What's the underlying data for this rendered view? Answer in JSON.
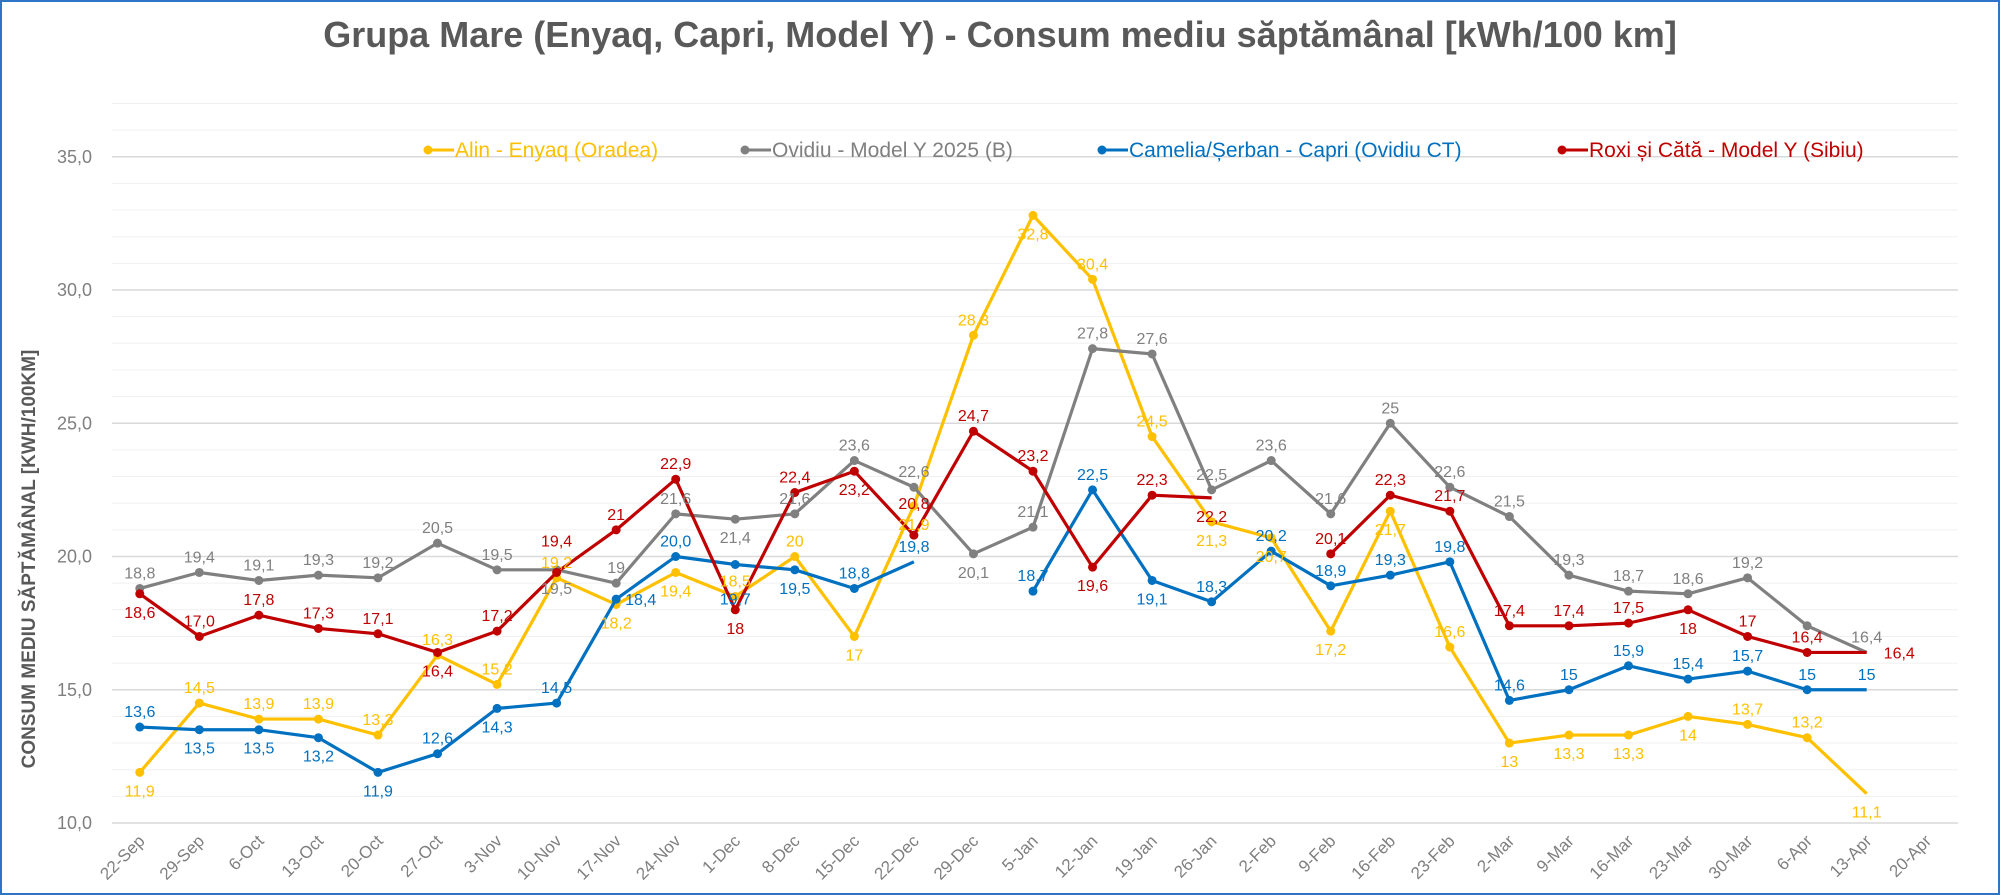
{
  "chart_data": {
    "type": "line",
    "title": "Grupa Mare (Enyaq, Capri, Model Y) - Consum mediu săptămânal [kWh/100 km]",
    "xlabel": "",
    "ylabel": "CONSUM MEDIU SĂPTĂMÂNAL [KWH/100KM]",
    "ylim": [
      10,
      37
    ],
    "yticks": [
      10,
      15,
      20,
      25,
      30,
      35
    ],
    "ytick_labels": [
      "10,0",
      "15,0",
      "20,0",
      "25,0",
      "30,0",
      "35,0"
    ],
    "grid": "horizontal major and minor (every 1 unit)",
    "legend_position": "top",
    "categories": [
      "22-Sep",
      "29-Sep",
      "6-Oct",
      "13-Oct",
      "20-Oct",
      "27-Oct",
      "3-Nov",
      "10-Nov",
      "17-Nov",
      "24-Nov",
      "1-Dec",
      "8-Dec",
      "15-Dec",
      "22-Dec",
      "29-Dec",
      "5-Jan",
      "12-Jan",
      "19-Jan",
      "26-Jan",
      "2-Feb",
      "9-Feb",
      "16-Feb",
      "23-Feb",
      "2-Mar",
      "9-Mar",
      "16-Mar",
      "23-Mar",
      "30-Mar",
      "6-Apr",
      "13-Apr",
      "20-Apr"
    ],
    "series": [
      {
        "name": "Alin - Enyaq (Oradea)",
        "color": "#ffc000",
        "values": [
          11.9,
          14.5,
          13.9,
          13.9,
          13.3,
          16.3,
          15.2,
          19.2,
          18.2,
          19.4,
          18.5,
          20,
          17,
          21.9,
          28.3,
          32.8,
          30.4,
          24.5,
          21.3,
          20.7,
          17.2,
          21.7,
          16.6,
          13,
          13.3,
          13.3,
          14,
          13.7,
          13.2,
          11.1,
          null
        ],
        "labels": [
          "11,9",
          "14,5",
          "13,9",
          "13,9",
          "13,3",
          "16,3",
          "15,2",
          "19,2",
          "18,2",
          "19,4",
          "18,5",
          "20",
          "17",
          "21,9",
          "28,3",
          "32,8",
          "30,4",
          "24,5",
          "21,3",
          "20,7",
          "17,2",
          "21,7",
          "16,6",
          "13",
          "13,3",
          "13,3",
          "14",
          "13,7",
          "13,2",
          "11,1",
          null
        ]
      },
      {
        "name": "Ovidiu - Model Y 2025 (B)",
        "color": "#808080",
        "values": [
          18.8,
          19.4,
          19.1,
          19.3,
          19.2,
          20.5,
          19.5,
          19.5,
          19,
          21.6,
          21.4,
          21.6,
          23.6,
          22.6,
          20.1,
          21.1,
          27.8,
          27.6,
          22.5,
          23.6,
          21.6,
          25,
          22.6,
          21.5,
          19.3,
          18.7,
          18.6,
          19.2,
          17.4,
          16.4,
          null
        ],
        "labels": [
          "18,8",
          "19,4",
          "19,1",
          "19,3",
          "19,2",
          "20,5",
          "19,5",
          "19,5",
          "19",
          "21,6",
          "21,4",
          "21,6",
          "23,6",
          "22,6",
          "20,1",
          "21,1",
          "27,8",
          "27,6",
          "22,5",
          "23,6",
          "21,6",
          "25",
          "22,6",
          "21,5",
          "19,3",
          "18,7",
          "18,6",
          "19,2",
          null,
          "16,4",
          null
        ]
      },
      {
        "name": "Camelia/Șerban - Capri (Ovidiu CT)",
        "color": "#0070c0",
        "values": [
          13.6,
          13.5,
          13.5,
          13.2,
          11.9,
          12.6,
          14.3,
          14.5,
          18.4,
          20.0,
          19.7,
          19.5,
          18.8,
          19.8,
          null,
          18.7,
          22.5,
          19.1,
          18.3,
          20.2,
          18.9,
          19.3,
          19.8,
          14.6,
          15,
          15.9,
          15.4,
          15.7,
          15,
          15,
          null
        ],
        "labels": [
          "13,6",
          "13,5",
          "13,5",
          "13,2",
          "11,9",
          "12,6",
          "14,3",
          "14,5",
          "18,4",
          "20,0",
          "19,7",
          "19,5",
          "18,8",
          "19,8",
          null,
          "18,7",
          "22,5",
          "19,1",
          "18,3",
          "20,2",
          "18,9",
          "19,3",
          "19,8",
          "14,6",
          "15",
          "15,9",
          "15,4",
          "15,7",
          "15",
          "15",
          null
        ]
      },
      {
        "name": "Roxi și Cătă - Model Y (Sibiu)",
        "color": "#c00000",
        "values": [
          18.6,
          17.0,
          17.8,
          17.3,
          17.1,
          16.4,
          17.2,
          19.4,
          21,
          22.9,
          18,
          22.4,
          23.2,
          20.8,
          24.7,
          23.2,
          19.6,
          22.3,
          22.2,
          null,
          20.1,
          22.3,
          21.7,
          17.4,
          17.4,
          17.5,
          18,
          17,
          16.4,
          16.4,
          null
        ],
        "labels": [
          "18,6",
          "17,0",
          "17,8",
          "17,3",
          "17,1",
          "16,4",
          "17,2",
          "19,4",
          "21",
          "22,9",
          "18",
          "22,4",
          "23,2",
          "20,8",
          "24,7",
          "23,2",
          "19,6",
          "22,3",
          "22,2",
          null,
          "20,1",
          "22,3",
          "21,7",
          "17,4",
          "17,4",
          "17,5",
          "18",
          "17",
          "16,4",
          "16,4",
          null
        ]
      }
    ]
  }
}
